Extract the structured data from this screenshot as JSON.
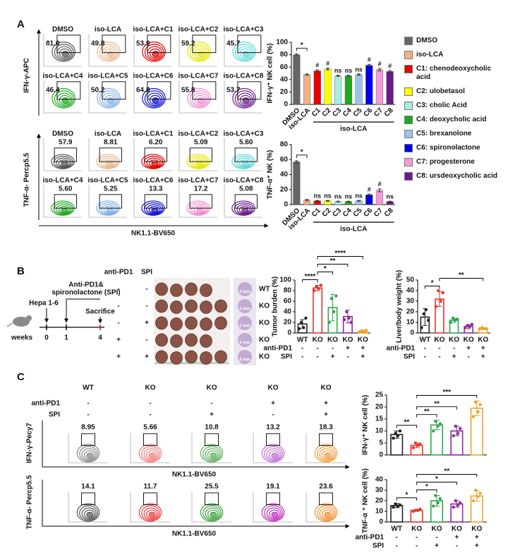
{
  "panel_a": {
    "label": "A",
    "x_label": "NK1.1-BV650",
    "flow_blocks": [
      {
        "y_label": "IFN-γ-APC",
        "samples": [
          {
            "name": "DMSO",
            "value": "81.0",
            "color": "#555555"
          },
          {
            "name": "iso-LCA",
            "value": "49.8",
            "color": "#e8b98f"
          },
          {
            "name": "iso-LCA+C1",
            "value": "53.9",
            "color": "#e60000"
          },
          {
            "name": "iso-LCA+C2",
            "value": "59.2",
            "color": "#e6e600"
          },
          {
            "name": "iso-LCA+C3",
            "value": "45.7",
            "color": "#5fd8d8"
          },
          {
            "name": "iso-LCA+C4",
            "value": "46.4",
            "color": "#1fa81f"
          },
          {
            "name": "iso-LCA+C5",
            "value": "50.2",
            "color": "#7fb0e6"
          },
          {
            "name": "iso-LCA+C6",
            "value": "64.8",
            "color": "#1010d0"
          },
          {
            "name": "iso-LCA+C7",
            "value": "55.8",
            "color": "#f08ad0"
          },
          {
            "name": "iso-LCA+C8",
            "value": "53.7",
            "color": "#6a1b8a"
          }
        ]
      },
      {
        "y_label": "TNF-α- Percp5.5",
        "samples": [
          {
            "name": "DMSO",
            "value": "57.9",
            "color": "#555555"
          },
          {
            "name": "iso-LCA",
            "value": "8.81",
            "color": "#e8b98f"
          },
          {
            "name": "iso-LCA+C1",
            "value": "6.20",
            "color": "#e60000"
          },
          {
            "name": "iso-LCA+C2",
            "value": "5.09",
            "color": "#e6e600"
          },
          {
            "name": "iso-LCA+C3",
            "value": "5.60",
            "color": "#5fd8d8"
          },
          {
            "name": "iso-LCA+C4",
            "value": "5.60",
            "color": "#1fa81f"
          },
          {
            "name": "iso-LCA+C5",
            "value": "5.25",
            "color": "#7fb0e6"
          },
          {
            "name": "iso-LCA+C6",
            "value": "13.3",
            "color": "#1010d0"
          },
          {
            "name": "iso-LCA+C7",
            "value": "17.2",
            "color": "#f08ad0"
          },
          {
            "name": "iso-LCA+C8",
            "value": "5.08",
            "color": "#6a1b8a"
          }
        ]
      }
    ],
    "legend": [
      {
        "name": "DMSO",
        "color": "#666666"
      },
      {
        "name": "iso-LCA",
        "color": "#f4b183"
      },
      {
        "name": "C1: chenodeoxycholic acid",
        "color": "#e60000"
      },
      {
        "name": "C2: ulobetasol",
        "color": "#ffff00"
      },
      {
        "name": "C3: cholic Acid",
        "color": "#a8ece0"
      },
      {
        "name": "C4: deoxycholic acid",
        "color": "#1fa81f"
      },
      {
        "name": "C5: brexanolone",
        "color": "#9cc3e8"
      },
      {
        "name": "C6: spironolactone",
        "color": "#0000e6"
      },
      {
        "name": "C7: progesterone",
        "color": "#f59ad9"
      },
      {
        "name": "C8: ursdeoxycholic acid",
        "color": "#6a1b8a"
      }
    ]
  },
  "panel_b": {
    "label": "B",
    "timeline": {
      "start": "Hepa 1-6",
      "treatment": [
        "Anti-PD1&",
        "spironolactone (SPI)"
      ],
      "end": "Sacrifice",
      "axis": "weeks",
      "ticks": [
        0,
        1,
        4
      ]
    },
    "photo": {
      "headers": [
        "anti-PD1",
        "SPI"
      ],
      "rows": [
        {
          "group": "WT",
          "anti_pd1": "-",
          "spi": "-",
          "scale": "3 mm"
        },
        {
          "group": "KO",
          "anti_pd1": "-",
          "spi": "-",
          "scale": "3 mm"
        },
        {
          "group": "KO",
          "anti_pd1": "-",
          "spi": "+",
          "scale": "3 mm"
        },
        {
          "group": "KO",
          "anti_pd1": "+",
          "spi": "-",
          "scale": "3 mm"
        },
        {
          "group": "KO",
          "anti_pd1": "+",
          "spi": "+",
          "scale": "3 mm"
        }
      ]
    }
  },
  "panel_c": {
    "label": "C",
    "groups": [
      "WT",
      "KO",
      "KO",
      "KO",
      "KO"
    ],
    "treatments": [
      {
        "name": "anti-PD1",
        "values": [
          "-",
          "-",
          "-",
          "+",
          "+"
        ]
      },
      {
        "name": "SPI",
        "values": [
          "-",
          "-",
          "+",
          "-",
          "+"
        ]
      }
    ],
    "flow_blocks": [
      {
        "y_label": "IFN-γ-Pecy7",
        "x_label": "NK1.1-BV650",
        "samples": [
          {
            "value": "8.95",
            "color": "#888888"
          },
          {
            "value": "5.66",
            "color": "#f08080"
          },
          {
            "value": "10.8",
            "color": "#60b060"
          },
          {
            "value": "13.2",
            "color": "#c070d0"
          },
          {
            "value": "18.3",
            "color": "#f0a040"
          }
        ]
      },
      {
        "y_label": "TNF-α- Percp5.5",
        "x_label": "NK1.1-BV650",
        "samples": [
          {
            "value": "14.1",
            "color": "#555555"
          },
          {
            "value": "11.7",
            "color": "#e84040"
          },
          {
            "value": "25.5",
            "color": "#40a040"
          },
          {
            "value": "19.1",
            "color": "#c030c0"
          },
          {
            "value": "23.6",
            "color": "#f09030"
          }
        ]
      }
    ]
  },
  "chart_data": [
    {
      "type": "bar",
      "y_label": "IFN-γ⁺ NK cell (%)",
      "bar_style": "filled",
      "categories": [
        "DMSO",
        "iso-LCA",
        "C1",
        "C2",
        "C3",
        "C4",
        "C5",
        "C6",
        "C7",
        "C8"
      ],
      "values": [
        80,
        48,
        54,
        57,
        46,
        46,
        48,
        63,
        56,
        53
      ],
      "errors": [
        1.5,
        1,
        1.5,
        1.5,
        1,
        1,
        1,
        1.5,
        2,
        1.5
      ],
      "colors": [
        "#666666",
        "#f4b183",
        "#e60000",
        "#ffff00",
        "#a8ece0",
        "#1fa81f",
        "#9cc3e8",
        "#0000e6",
        "#f59ad9",
        "#6a1b8a"
      ],
      "ylim": [
        0,
        100
      ],
      "yticks": [
        0,
        20,
        40,
        60,
        80,
        100
      ],
      "annotations": [
        {
          "text": "*",
          "between": [
            0,
            1
          ]
        }
      ],
      "bar_labels": [
        null,
        null,
        "#",
        "#",
        "ns",
        "ns",
        "ns",
        "#",
        "#",
        "#"
      ],
      "group": {
        "text": "iso-LCA",
        "between": [
          2,
          9
        ]
      }
    },
    {
      "type": "bar",
      "y_label": "TNF-α⁺ NK (%)",
      "bar_style": "filled",
      "categories": [
        "DMSO",
        "iso-LCA",
        "C1",
        "C2",
        "C3",
        "C4",
        "C5",
        "C6",
        "C7",
        "C8"
      ],
      "values": [
        57,
        6,
        5,
        5,
        4,
        4,
        5,
        13,
        19,
        4
      ],
      "errors": [
        1.5,
        1,
        0.5,
        0.5,
        0.5,
        0.5,
        0.5,
        1,
        2,
        0.5
      ],
      "colors": [
        "#666666",
        "#f4b183",
        "#e60000",
        "#ffff00",
        "#a8ece0",
        "#1fa81f",
        "#9cc3e8",
        "#0000e6",
        "#f59ad9",
        "#6a1b8a"
      ],
      "ylim": [
        0,
        80
      ],
      "yticks": [
        0,
        20,
        40,
        60,
        80
      ],
      "annotations": [
        {
          "text": "*",
          "between": [
            0,
            1
          ]
        }
      ],
      "bar_labels": [
        null,
        null,
        "ns",
        "ns",
        "ns",
        "ns",
        "ns",
        "#",
        "#",
        "ns"
      ],
      "group": {
        "text": "iso-LCA",
        "between": [
          2,
          9
        ]
      }
    },
    {
      "type": "bar",
      "y_label": "Tumor burden (%)",
      "bar_style": "outline",
      "categories": [
        "WT",
        "KO",
        "KO",
        "KO",
        "KO"
      ],
      "rows": [
        {
          "name": "anti-PD1",
          "values": [
            "-",
            "-",
            "-",
            "+",
            "+"
          ]
        },
        {
          "name": "SPI",
          "values": [
            "-",
            "-",
            "+",
            "-",
            "+"
          ]
        }
      ],
      "values": [
        17,
        85,
        48,
        31,
        3
      ],
      "errors": [
        8,
        5,
        25,
        12,
        2
      ],
      "points": [
        [
          8,
          20,
          10,
          28
        ],
        [
          80,
          88,
          84,
          90
        ],
        [
          20,
          65,
          40,
          70
        ],
        [
          25,
          40,
          28,
          20
        ],
        [
          2,
          4,
          1,
          5
        ]
      ],
      "colors": [
        "#222222",
        "#e8352b",
        "#2ca84a",
        "#8e2a9c",
        "#f0a030"
      ],
      "ylim": [
        0,
        100
      ],
      "yticks": [
        0,
        20,
        40,
        60,
        80,
        100
      ],
      "annotations": [
        {
          "text": "****",
          "between": [
            0,
            1
          ]
        },
        {
          "text": "*",
          "between": [
            1,
            2
          ]
        },
        {
          "text": "**",
          "between": [
            1,
            3
          ]
        },
        {
          "text": "****",
          "between": [
            1,
            4
          ]
        }
      ]
    },
    {
      "type": "bar",
      "y_label": "Liver/body weight (%)",
      "bar_style": "outline",
      "categories": [
        "WT",
        "KO",
        "KO",
        "KO",
        "KO"
      ],
      "rows": [
        {
          "name": "anti-PD1",
          "values": [
            "-",
            "-",
            "-",
            "+",
            "+"
          ]
        },
        {
          "name": "SPI",
          "values": [
            "-",
            "-",
            "+",
            "-",
            "+"
          ]
        }
      ],
      "values": [
        15,
        32,
        12,
        6,
        4
      ],
      "errors": [
        8,
        7,
        2,
        2,
        1
      ],
      "points": [
        [
          5,
          18,
          22,
          12
        ],
        [
          25,
          40,
          30,
          38
        ],
        [
          10,
          14,
          12,
          13
        ],
        [
          5,
          7,
          6,
          8
        ],
        [
          4,
          5,
          4,
          4
        ]
      ],
      "colors": [
        "#222222",
        "#e8352b",
        "#2ca84a",
        "#8e2a9c",
        "#f0a030"
      ],
      "ylim": [
        0,
        50
      ],
      "yticks": [
        0,
        10,
        20,
        30,
        40,
        50
      ],
      "annotations": [
        {
          "text": "*",
          "between": [
            0,
            1
          ]
        },
        {
          "text": "**",
          "between": [
            1,
            4
          ]
        }
      ]
    },
    {
      "type": "bar",
      "y_label": "IFN-γ⁺ NK cell (%)",
      "bar_style": "outline",
      "values": [
        8.5,
        4,
        12.5,
        10,
        19.5
      ],
      "errors": [
        1.5,
        1,
        2,
        2,
        3
      ],
      "points": [
        [
          7,
          9,
          8,
          10
        ],
        [
          3,
          5,
          4,
          4.5
        ],
        [
          10,
          14,
          12,
          13
        ],
        [
          8,
          12,
          9,
          11
        ],
        [
          16,
          22,
          18,
          21
        ]
      ],
      "colors": [
        "#222222",
        "#e8352b",
        "#2ca84a",
        "#8e2a9c",
        "#f0a030"
      ],
      "ylim": [
        0,
        25
      ],
      "yticks": [
        0,
        5,
        10,
        15,
        20,
        25
      ],
      "annotations": [
        {
          "text": "**",
          "between": [
            0,
            1
          ]
        },
        {
          "text": "**",
          "between": [
            1,
            2
          ]
        },
        {
          "text": "**",
          "between": [
            1,
            3
          ]
        },
        {
          "text": "***",
          "between": [
            1,
            4
          ]
        }
      ]
    },
    {
      "type": "bar",
      "y_label": "TNF-α ⁺ NK cell (%)",
      "bar_style": "outline",
      "categories": [
        "WT",
        "KO",
        "KO",
        "KO",
        "KO"
      ],
      "rows": [
        {
          "name": "anti-PD1",
          "values": [
            "-",
            "-",
            "-",
            "+",
            "+"
          ]
        },
        {
          "name": "SPI",
          "values": [
            "-",
            "-",
            "+",
            "-",
            "+"
          ]
        }
      ],
      "values": [
        15.5,
        11,
        20,
        17,
        24.5
      ],
      "errors": [
        2,
        0.5,
        5,
        3,
        5
      ],
      "points": [
        [
          14,
          17,
          15,
          16
        ],
        [
          10,
          11,
          11,
          12
        ],
        [
          15,
          25,
          18,
          22
        ],
        [
          14,
          20,
          16,
          18
        ],
        [
          20,
          30,
          24,
          27
        ]
      ],
      "colors": [
        "#222222",
        "#e8352b",
        "#2ca84a",
        "#8e2a9c",
        "#f0a030"
      ],
      "ylim": [
        0,
        40
      ],
      "yticks": [
        0,
        10,
        20,
        30,
        40
      ],
      "annotations": [
        {
          "text": "*",
          "between": [
            0,
            1
          ]
        },
        {
          "text": "*",
          "between": [
            1,
            2
          ]
        },
        {
          "text": "*",
          "between": [
            1,
            3
          ]
        },
        {
          "text": "**",
          "between": [
            1,
            4
          ]
        }
      ]
    }
  ]
}
